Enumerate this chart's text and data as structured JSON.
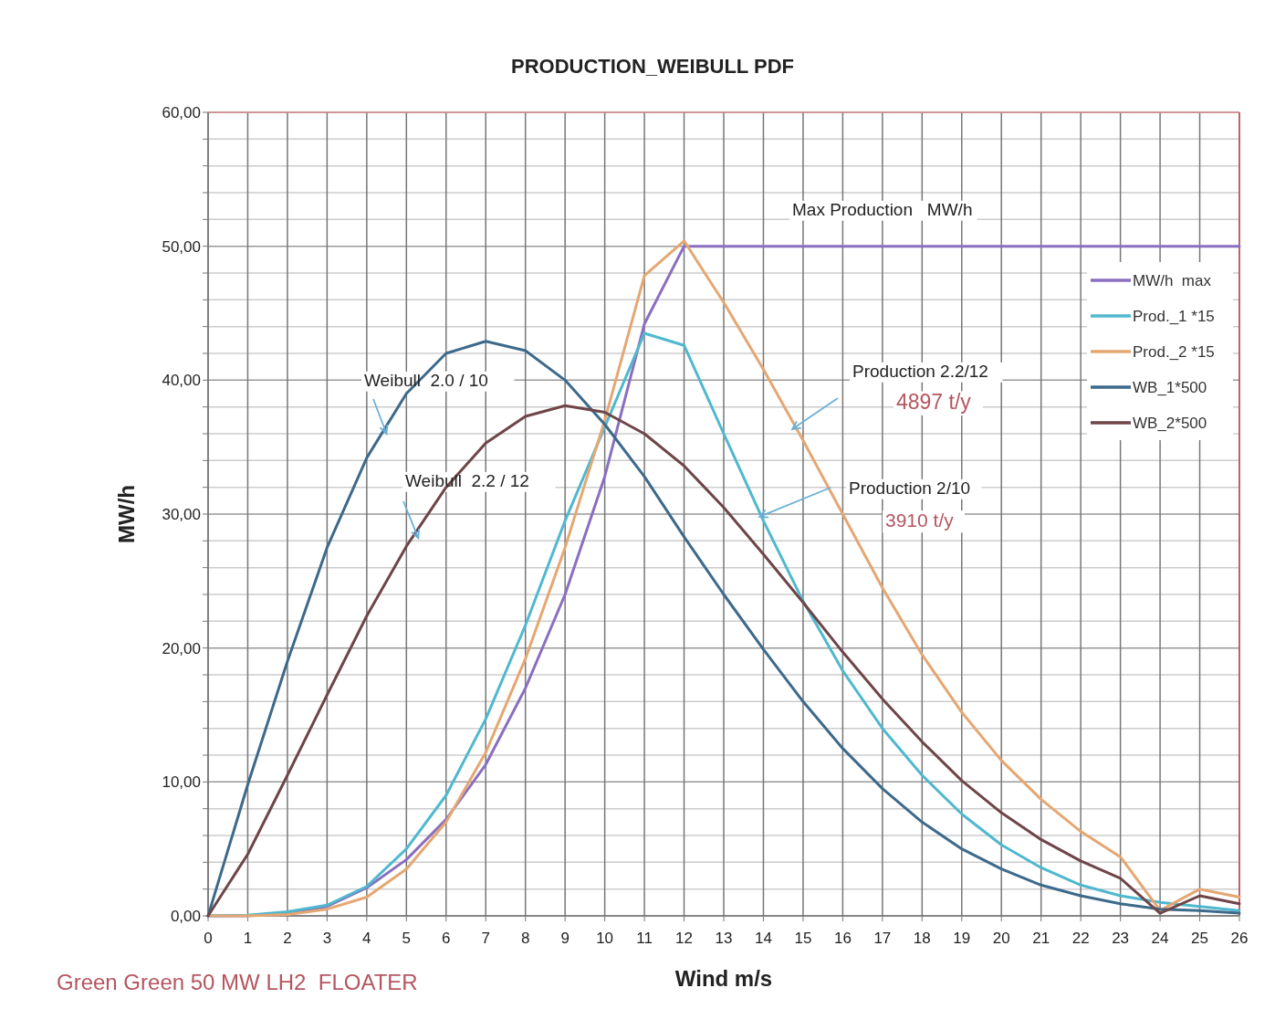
{
  "chart_data": {
    "type": "line",
    "title": "PRODUCTION_WEIBULL PDF",
    "xlabel": "Wind  m/s",
    "ylabel": "MW/h",
    "x": [
      0,
      1,
      2,
      3,
      4,
      5,
      6,
      7,
      8,
      9,
      10,
      11,
      12,
      13,
      14,
      15,
      16,
      17,
      18,
      19,
      20,
      21,
      22,
      23,
      24,
      25,
      26
    ],
    "xlim": [
      0,
      26
    ],
    "xticks": [
      0,
      1,
      2,
      3,
      4,
      5,
      6,
      7,
      8,
      9,
      10,
      11,
      12,
      13,
      14,
      15,
      16,
      17,
      18,
      19,
      20,
      21,
      22,
      23,
      24,
      25,
      26
    ],
    "ylim": [
      0,
      60
    ],
    "yticks": [
      {
        "value": 0,
        "label": "0,00"
      },
      {
        "value": 2,
        "label": null
      },
      {
        "value": 4,
        "label": null
      },
      {
        "value": 6,
        "label": null
      },
      {
        "value": 8,
        "label": null
      },
      {
        "value": 10,
        "label": "10,00"
      },
      {
        "value": 12,
        "label": null
      },
      {
        "value": 14,
        "label": null
      },
      {
        "value": 16,
        "label": null
      },
      {
        "value": 18,
        "label": null
      },
      {
        "value": 20,
        "label": "20,00"
      },
      {
        "value": 22,
        "label": null
      },
      {
        "value": 24,
        "label": null
      },
      {
        "value": 26,
        "label": null
      },
      {
        "value": 28,
        "label": null
      },
      {
        "value": 30,
        "label": "30,00"
      },
      {
        "value": 32,
        "label": null
      },
      {
        "value": 34,
        "label": null
      },
      {
        "value": 36,
        "label": null
      },
      {
        "value": 38,
        "label": null
      },
      {
        "value": 40,
        "label": "40,00"
      },
      {
        "value": 42,
        "label": null
      },
      {
        "value": 44,
        "label": null
      },
      {
        "value": 46,
        "label": null
      },
      {
        "value": 48,
        "label": null
      },
      {
        "value": 50,
        "label": "50,00"
      },
      {
        "value": 52,
        "label": null
      },
      {
        "value": 54,
        "label": null
      },
      {
        "value": 56,
        "label": null
      },
      {
        "value": 58,
        "label": null
      },
      {
        "value": 60,
        "label": "60,00"
      }
    ],
    "grid": true,
    "legend": "top right",
    "marker": "none",
    "line_style": "solid",
    "series": [
      {
        "name": "MW/h  max",
        "color": "#8a6fc0",
        "values": [
          0,
          0,
          0.2,
          0.7,
          2.1,
          4.2,
          7.2,
          11.3,
          17,
          24,
          32.8,
          44.2,
          50,
          50,
          50,
          50,
          50,
          50,
          50,
          50,
          50,
          50,
          50,
          50,
          50,
          50,
          50
        ]
      },
      {
        "name": "Prod._1 *15",
        "color": "#4fb8cf",
        "values": [
          0,
          0.05,
          0.3,
          0.8,
          2.2,
          5,
          9,
          14.7,
          21.7,
          29.5,
          36.5,
          43.5,
          42.6,
          36,
          29.5,
          23.5,
          18.3,
          14,
          10.5,
          7.6,
          5.3,
          3.6,
          2.3,
          1.5,
          1,
          0.7,
          0.4
        ]
      },
      {
        "name": "Prod._2 *15",
        "color": "#e5a772",
        "values": [
          0,
          0,
          0.1,
          0.5,
          1.4,
          3.5,
          7,
          12.2,
          19.2,
          27.5,
          37,
          47.8,
          50.4,
          45.8,
          40.8,
          35.5,
          30,
          24.5,
          19.5,
          15.2,
          11.6,
          8.7,
          6.3,
          4.4,
          0.4,
          2,
          1.4
        ]
      },
      {
        "name": "WB_1*500",
        "color": "#3d6a8a",
        "values": [
          0,
          9.8,
          19,
          27.5,
          34.2,
          39,
          42,
          42.9,
          42.2,
          40,
          36.7,
          32.8,
          28.3,
          24,
          19.9,
          16,
          12.5,
          9.5,
          7,
          5,
          3.5,
          2.3,
          1.5,
          0.9,
          0.5,
          0.4,
          0.2
        ]
      },
      {
        "name": "WB_2*500",
        "color": "#6e4548",
        "values": [
          0,
          4.6,
          10.5,
          16.5,
          22.4,
          27.6,
          32,
          35.3,
          37.3,
          38.1,
          37.6,
          36,
          33.6,
          30.5,
          27,
          23.4,
          19.7,
          16.2,
          13,
          10.1,
          7.7,
          5.7,
          4.1,
          2.8,
          0.2,
          1.5,
          0.9
        ]
      }
    ],
    "annotations": [
      "Max Production   MW/h",
      {
        "text": "Weibull  2.0 / 10",
        "x": 4.5,
        "y": 36
      },
      {
        "text": "Weibull  2.2 / 12",
        "x": 5.3,
        "y": 28.2
      },
      "Production 2.2/12",
      "4897 t/y",
      {
        "text": "Production 2/10",
        "x": 13.9,
        "y": 29.8
      },
      "3910 t/y",
      "Green Green 50 MW LH2  FLOATER"
    ]
  }
}
